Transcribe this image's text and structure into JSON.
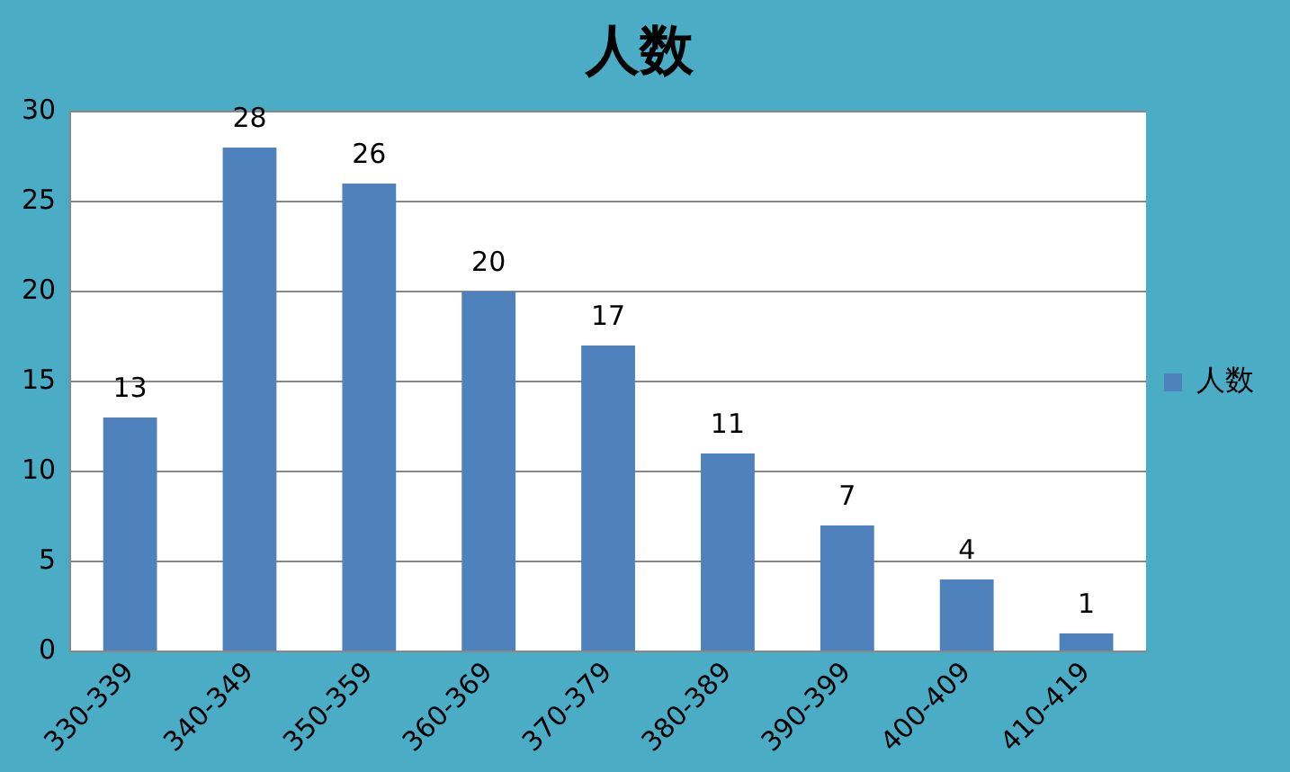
{
  "chart_data": {
    "type": "bar",
    "title": "人数",
    "categories": [
      "330-339",
      "340-349",
      "350-359",
      "360-369",
      "370-379",
      "380-389",
      "390-399",
      "400-409",
      "410-419"
    ],
    "series": [
      {
        "name": "人数",
        "color": "#4f81bd",
        "values": [
          13,
          28,
          26,
          20,
          17,
          11,
          7,
          4,
          1
        ]
      }
    ],
    "ylim": [
      0,
      30
    ],
    "yticks": [
      0,
      5,
      10,
      15,
      20,
      25,
      30
    ],
    "grid": "y",
    "legend": "right",
    "data_labels": true
  }
}
